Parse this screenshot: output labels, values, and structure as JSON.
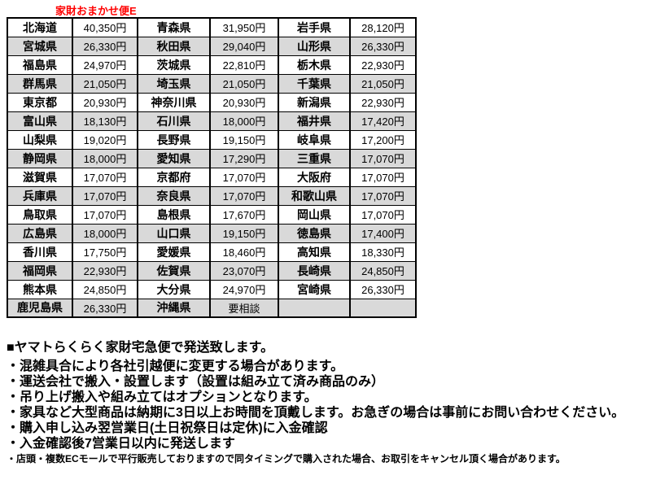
{
  "title": "家財おまかせ便E",
  "table": {
    "rows": [
      {
        "shaded": false,
        "cells": [
          "北海道",
          "40,350円",
          "青森県",
          "31,950円",
          "岩手県",
          "28,120円"
        ]
      },
      {
        "shaded": true,
        "cells": [
          "宮城県",
          "26,330円",
          "秋田県",
          "29,040円",
          "山形県",
          "26,330円"
        ]
      },
      {
        "shaded": false,
        "cells": [
          "福島県",
          "24,970円",
          "茨城県",
          "22,810円",
          "栃木県",
          "22,930円"
        ]
      },
      {
        "shaded": true,
        "cells": [
          "群馬県",
          "21,050円",
          "埼玉県",
          "21,050円",
          "千葉県",
          "21,050円"
        ]
      },
      {
        "shaded": false,
        "cells": [
          "東京都",
          "20,930円",
          "神奈川県",
          "20,930円",
          "新潟県",
          "22,930円"
        ]
      },
      {
        "shaded": true,
        "cells": [
          "富山県",
          "18,130円",
          "石川県",
          "18,000円",
          "福井県",
          "17,420円"
        ]
      },
      {
        "shaded": false,
        "cells": [
          "山梨県",
          "19,020円",
          "長野県",
          "19,150円",
          "岐阜県",
          "17,200円"
        ]
      },
      {
        "shaded": true,
        "cells": [
          "静岡県",
          "18,000円",
          "愛知県",
          "17,290円",
          "三重県",
          "17,070円"
        ]
      },
      {
        "shaded": false,
        "cells": [
          "滋賀県",
          "17,070円",
          "京都府",
          "17,070円",
          "大阪府",
          "17,070円"
        ]
      },
      {
        "shaded": true,
        "cells": [
          "兵庫県",
          "17,070円",
          "奈良県",
          "17,070円",
          "和歌山県",
          "17,070円"
        ]
      },
      {
        "shaded": false,
        "cells": [
          "鳥取県",
          "17,070円",
          "島根県",
          "17,670円",
          "岡山県",
          "17,070円"
        ]
      },
      {
        "shaded": true,
        "cells": [
          "広島県",
          "18,000円",
          "山口県",
          "19,150円",
          "徳島県",
          "17,400円"
        ]
      },
      {
        "shaded": false,
        "cells": [
          "香川県",
          "17,750円",
          "愛媛県",
          "18,460円",
          "高知県",
          "18,330円"
        ]
      },
      {
        "shaded": true,
        "cells": [
          "福岡県",
          "22,930円",
          "佐賀県",
          "23,070円",
          "長崎県",
          "24,850円"
        ]
      },
      {
        "shaded": false,
        "cells": [
          "熊本県",
          "24,850円",
          "大分県",
          "24,970円",
          "宮崎県",
          "26,330円"
        ]
      },
      {
        "shaded": true,
        "cells": [
          "鹿児島県",
          "26,330円",
          "沖縄県",
          "要相談",
          "",
          ""
        ]
      }
    ]
  },
  "notes": {
    "heading": "■ヤマトらくらく家財宅急便で発送致します。",
    "bullets": [
      "・混雑具合により各社引越便に変更する場合があります。",
      "・運送会社で搬入・設置します（設置は組み立て済み商品のみ）",
      "・吊り上げ搬入や組み立てはオプションとなります。",
      "・家具など大型商品は納期に3日以上お時間を頂戴します。お急ぎの場合は事前にお問い合わせください。",
      "・購入申し込み翌営業日(土日祝祭日は定休)に入金確認",
      "・入金確認後7営業日以内に発送します"
    ],
    "small_note": "・店頭・複数ECモールで平行販売しておりますので同タイミングで購入された場合、お取引をキャンセル頂く場合があります。"
  },
  "colors": {
    "title_red": "#ff0000",
    "shaded_row": "#d9d9d9",
    "border": "#000000"
  }
}
